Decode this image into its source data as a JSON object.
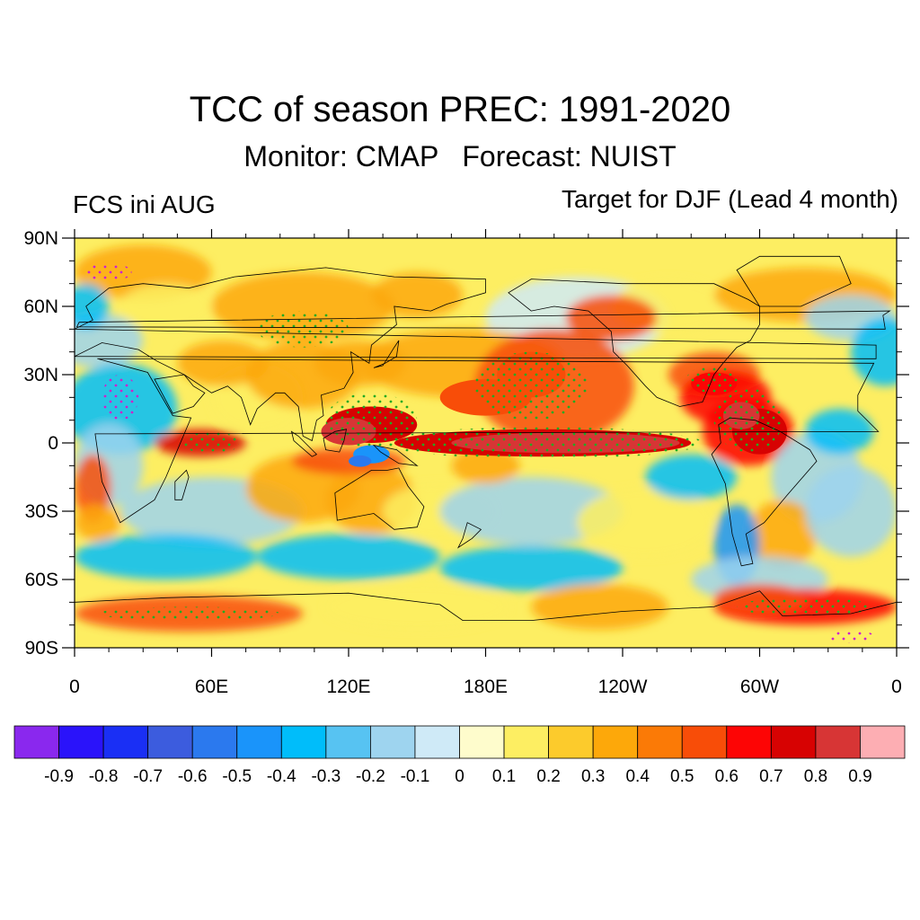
{
  "title": "TCC of season PREC: 1991-2020",
  "subtitle": "Monitor: CMAP   Forecast: NUIST",
  "left_label": "FCS ini AUG",
  "right_label": "Target for DJF (Lead 4 month)",
  "lat_ticks": [
    {
      "lat": 90,
      "label": "90N"
    },
    {
      "lat": 60,
      "label": "60N"
    },
    {
      "lat": 30,
      "label": "30N"
    },
    {
      "lat": 0,
      "label": "0"
    },
    {
      "lat": -30,
      "label": "30S"
    },
    {
      "lat": -60,
      "label": "60S"
    },
    {
      "lat": -90,
      "label": "90S"
    }
  ],
  "lon_ticks": [
    {
      "lon": 0,
      "label": "0"
    },
    {
      "lon": 60,
      "label": "60E"
    },
    {
      "lon": 120,
      "label": "120E"
    },
    {
      "lon": 180,
      "label": "180E"
    },
    {
      "lon": 240,
      "label": "120W"
    },
    {
      "lon": 300,
      "label": "60W"
    },
    {
      "lon": 360,
      "label": "0"
    }
  ],
  "colorbar": {
    "colors": [
      "#8a28ee",
      "#2a13fa",
      "#1a2ff5",
      "#3c5cde",
      "#2b79ee",
      "#1a94fa",
      "#00bdfa",
      "#57c3f2",
      "#9ed4ef",
      "#cfeaf7",
      "#fefccc",
      "#fdee62",
      "#fccb2c",
      "#fda80a",
      "#fb7a06",
      "#f84d08",
      "#fd0505",
      "#d70202",
      "#d73535",
      "#fdaeb3"
    ],
    "labels": [
      "-0.9",
      "-0.8",
      "-0.7",
      "-0.6",
      "-0.5",
      "-0.4",
      "-0.3",
      "-0.2",
      "-0.1",
      "0",
      "0.1",
      "0.2",
      "0.3",
      "0.4",
      "0.5",
      "0.6",
      "0.7",
      "0.8",
      "0.9"
    ]
  },
  "map_data": {
    "field": "temporal correlation coefficient (TCC), DJF precipitation",
    "significance_marker_color": "#22aa22",
    "negative_significance_marker_color": "#cc22cc",
    "coastline_color": "#000000",
    "anomaly_features": [
      {
        "region": "equatorial central-east Pacific",
        "tcc": 0.9
      },
      {
        "region": "equatorial western Pacific / Maritime Continent",
        "tcc": 0.7
      },
      {
        "region": "northern South America",
        "tcc": 0.7
      },
      {
        "region": "Gulf of Mexico / southern US",
        "tcc": 0.6
      },
      {
        "region": "Indonesian seas",
        "tcc": -0.5
      },
      {
        "region": "Antarctic margin",
        "tcc": 0.6
      }
    ]
  }
}
